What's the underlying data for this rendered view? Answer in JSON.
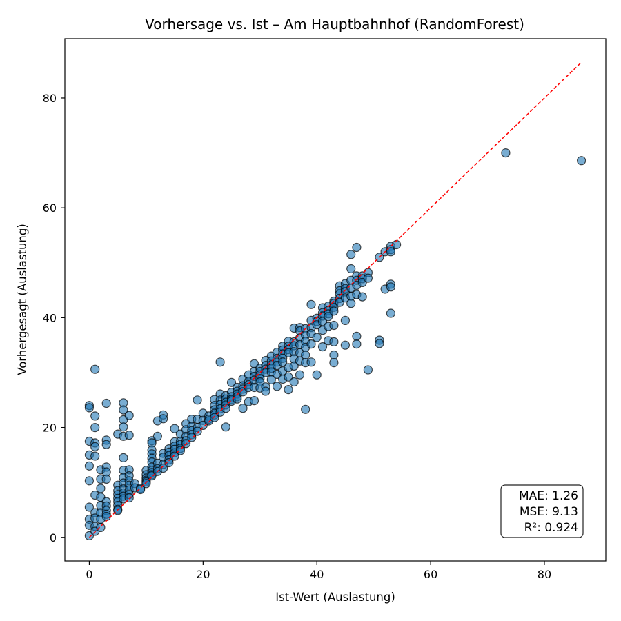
{
  "chart_data": {
    "type": "scatter",
    "title": "Vorhersage vs. Ist – Am Hauptbahnhof (RandomForest)",
    "xlabel": "Ist-Wert (Auslastung)",
    "ylabel": "Vorhergesagt (Auslastung)",
    "xlim": [
      -4.3,
      90.8
    ],
    "ylim": [
      -4.3,
      90.8
    ],
    "xticks": [
      0,
      20,
      40,
      60,
      80
    ],
    "yticks": [
      0,
      20,
      40,
      60,
      80
    ],
    "grid": false,
    "marker_color": "#1f77b4",
    "reference_line": {
      "label": "",
      "color": "#ff0000",
      "style": "dashed",
      "from": [
        0,
        0
      ],
      "to": [
        86.5,
        86.5
      ]
    },
    "metrics": {
      "mae": "MAE: 1.26",
      "mse": "MSE: 9.13",
      "r2": "R²: 0.924"
    },
    "x": [
      0,
      0,
      0,
      0,
      0,
      0,
      0,
      0,
      0,
      0,
      1,
      1,
      1,
      1,
      1,
      1,
      1,
      1,
      1,
      1,
      1,
      2,
      2,
      2,
      2,
      2,
      2,
      2,
      2,
      3,
      3,
      3,
      3,
      3,
      3,
      3,
      3,
      3,
      3,
      3,
      5,
      5,
      5,
      5,
      5,
      5,
      5,
      5,
      5,
      6,
      6,
      6,
      6,
      6,
      6,
      6,
      6,
      6,
      6,
      6,
      6,
      6,
      7,
      7,
      7,
      7,
      7,
      7,
      7,
      7,
      7,
      8,
      8,
      9,
      9,
      10,
      10,
      10,
      10,
      10,
      10,
      11,
      11,
      11,
      11,
      11,
      11,
      11,
      11,
      11,
      11,
      11,
      12,
      12,
      12,
      12,
      12,
      13,
      13,
      13,
      13,
      13,
      13,
      14,
      14,
      14,
      14,
      14,
      15,
      15,
      15,
      15,
      15,
      15,
      16,
      16,
      16,
      16,
      16,
      17,
      17,
      17,
      17,
      17,
      18,
      18,
      18,
      18,
      18,
      19,
      19,
      19,
      19,
      20,
      20,
      20,
      21,
      21,
      21,
      22,
      22,
      22,
      22,
      22,
      22,
      23,
      23,
      23,
      23,
      23,
      23,
      24,
      24,
      24,
      24,
      24,
      24,
      25,
      25,
      25,
      25,
      25,
      26,
      26,
      26,
      26,
      26,
      27,
      27,
      27,
      27,
      27,
      28,
      28,
      28,
      28,
      28,
      29,
      29,
      29,
      29,
      29,
      29,
      30,
      30,
      30,
      30,
      30,
      30,
      31,
      31,
      31,
      31,
      31,
      31,
      32,
      32,
      32,
      32,
      32,
      32,
      33,
      33,
      33,
      33,
      33,
      33,
      34,
      34,
      34,
      34,
      34,
      34,
      34,
      35,
      35,
      35,
      35,
      35,
      35,
      35,
      36,
      36,
      36,
      36,
      36,
      36,
      36,
      37,
      37,
      37,
      37,
      37,
      37,
      37,
      38,
      38,
      38,
      38,
      38,
      38,
      38,
      39,
      39,
      39,
      39,
      39,
      39,
      40,
      40,
      40,
      40,
      40,
      41,
      41,
      41,
      41,
      41,
      41,
      42,
      42,
      42,
      42,
      42,
      42,
      43,
      43,
      43,
      43,
      43,
      43,
      43,
      43,
      44,
      44,
      44,
      44,
      44,
      45,
      45,
      45,
      45,
      45,
      45,
      46,
      46,
      46,
      46,
      46,
      46,
      47,
      47,
      47,
      47,
      47,
      47,
      47,
      48,
      48,
      48,
      48,
      49,
      49,
      49,
      51,
      51,
      51,
      52,
      52,
      53,
      53,
      53,
      53,
      53,
      53,
      54,
      73.2,
      86.5
    ],
    "y": [
      24,
      23.6,
      17.5,
      15,
      13,
      10.3,
      5.5,
      3.3,
      2.2,
      0.3,
      30.6,
      22.1,
      20,
      17.2,
      16.5,
      14.8,
      7.7,
      4.5,
      3.5,
      2,
      1.1,
      12.3,
      10.6,
      8.9,
      7.3,
      5.8,
      4.5,
      3.3,
      1.8,
      24.4,
      17.7,
      16.9,
      12.8,
      11.9,
      10.6,
      6.5,
      5.7,
      4.9,
      4.2,
      3.8,
      18.8,
      9.5,
      8.5,
      7.8,
      7.1,
      6.5,
      5.8,
      5.1,
      4.9,
      24.5,
      23.2,
      21.4,
      20.1,
      18.4,
      14.5,
      12.2,
      10.9,
      9.9,
      8.8,
      8.1,
      7.5,
      7,
      22.2,
      18.6,
      12.3,
      11.2,
      10.3,
      9.5,
      8.6,
      7.8,
      7.2,
      9.8,
      9,
      8.9,
      8.7,
      12.2,
      11.4,
      10.8,
      10.4,
      10.1,
      9.8,
      17.6,
      17.2,
      15.9,
      15.2,
      14.4,
      13.7,
      12.8,
      12.2,
      11.8,
      11.4,
      11.2,
      21.2,
      18.4,
      13.5,
      12.5,
      12,
      22.3,
      21.6,
      15.3,
      14.6,
      13.3,
      12.6,
      16.1,
      15.5,
      14.9,
      14.1,
      13.6,
      19.8,
      17.4,
      16.6,
      16,
      15.4,
      14.8,
      18.8,
      17.5,
      16.9,
      16.2,
      15.8,
      20.7,
      19.6,
      18.4,
      17.6,
      17.1,
      21.5,
      20.2,
      19.4,
      18.7,
      18.2,
      25,
      21.5,
      20,
      19.3,
      22.6,
      21.3,
      20.4,
      22.1,
      21.5,
      21.2,
      25.1,
      24,
      23.2,
      22.6,
      22.3,
      21.8,
      31.9,
      26.1,
      25,
      24.2,
      23.4,
      22.8,
      25.8,
      25.2,
      24.6,
      24.1,
      23.5,
      20.1,
      28.2,
      26.4,
      25.6,
      25.1,
      24.8,
      27.3,
      26.6,
      26.1,
      25.6,
      25.2,
      28.8,
      27.6,
      27,
      26.5,
      23.5,
      29.6,
      28.4,
      27.8,
      27.3,
      24.7,
      31.6,
      30.2,
      29.3,
      28.6,
      27.3,
      24.9,
      30.8,
      30.2,
      29.6,
      28.9,
      28.3,
      27.2,
      32.2,
      31.3,
      30.6,
      30,
      27.4,
      26.6,
      33,
      32.1,
      31.4,
      30.8,
      30.1,
      28.7,
      33.7,
      32.6,
      31.9,
      31.3,
      29.7,
      27.5,
      34.8,
      34.1,
      33.4,
      32.6,
      31.9,
      30.3,
      28.8,
      35.7,
      34.8,
      34.2,
      33.6,
      30.9,
      29.2,
      26.9,
      38.1,
      35.6,
      34.9,
      33.8,
      32.5,
      31.2,
      28.3,
      38.2,
      37.6,
      36.3,
      35.1,
      33.6,
      32.1,
      29.6,
      38,
      36.8,
      35.7,
      34.6,
      33.2,
      31.8,
      23.3,
      42.4,
      39.5,
      38.2,
      37.1,
      35.2,
      31.9,
      39.9,
      39.3,
      38.7,
      36.4,
      29.6,
      41.8,
      40.9,
      40.3,
      39.3,
      37.7,
      34.7,
      42.1,
      41.3,
      40.7,
      40.2,
      38.4,
      35.8,
      43,
      42.6,
      41.9,
      41.2,
      38.6,
      35.6,
      33.2,
      31.8,
      45.8,
      44.9,
      44.3,
      43.5,
      42.8,
      46.2,
      45.3,
      44.7,
      43.6,
      39.5,
      35,
      51.5,
      48.9,
      46.8,
      45.4,
      43.9,
      42.6,
      52.8,
      47.6,
      46.8,
      45.9,
      44.2,
      36.6,
      35.2,
      47.6,
      47.1,
      46.4,
      43.8,
      48.2,
      47.2,
      30.5,
      51,
      35.9,
      35.3,
      52,
      45.2,
      53,
      52.4,
      52,
      46.1,
      45.6,
      40.8,
      53.3,
      70,
      68.6
    ]
  }
}
